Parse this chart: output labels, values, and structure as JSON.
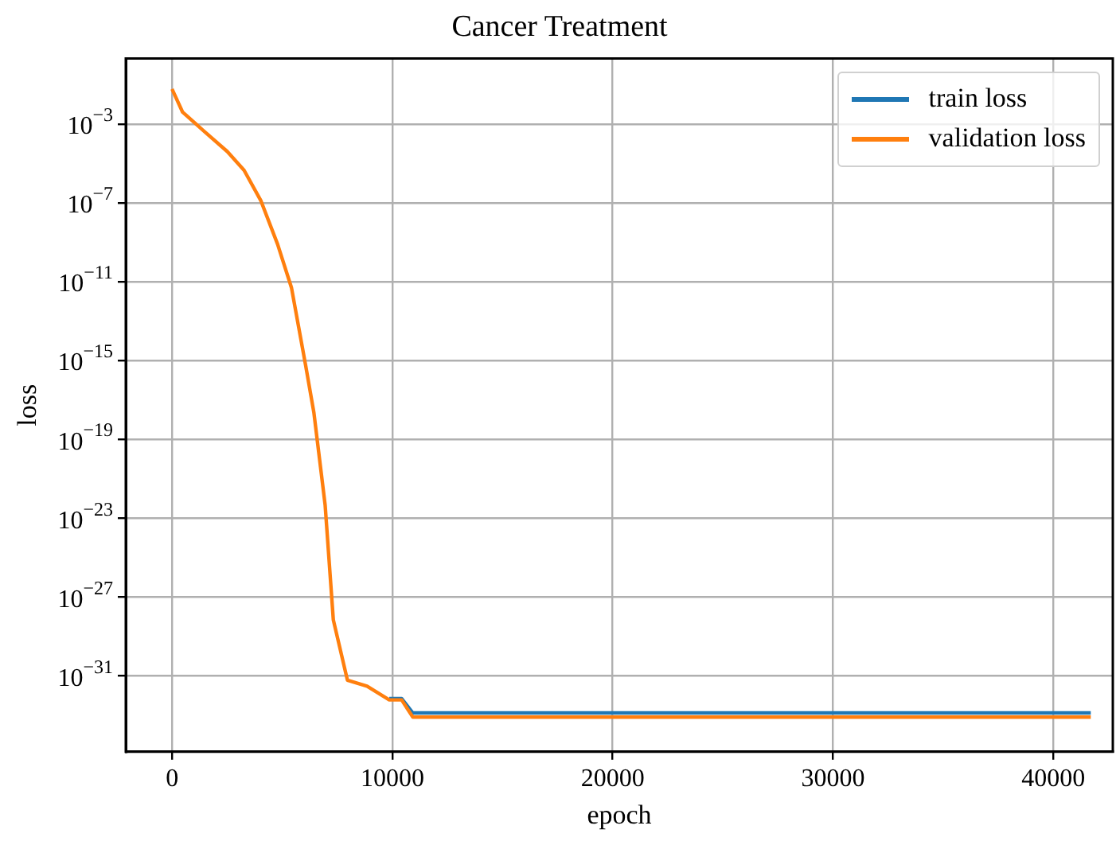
{
  "chart_data": {
    "type": "line",
    "title": "Cancer Treatment",
    "xlabel": "epoch",
    "ylabel": "loss",
    "log": "y",
    "grid": true,
    "legend": "top right",
    "line_style": "solid",
    "marker": "none",
    "xlim": [
      -2100,
      42700
    ],
    "xticks": [
      0,
      10000,
      20000,
      30000,
      40000
    ],
    "ylim": [
      1.4e-35,
      2.1
    ],
    "yticks": [
      {
        "value": 0.001,
        "label": "10$^{−3}$"
      },
      {
        "value": 1e-07,
        "label": "10$^{−7}$"
      },
      {
        "value": 1e-11,
        "label": "10$^{−11}$"
      },
      {
        "value": 1e-15,
        "label": "10$^{−15}$"
      },
      {
        "value": 1e-19,
        "label": "10$^{−19}$"
      },
      {
        "value": 1e-23,
        "label": "10$^{−23}$"
      },
      {
        "value": 1e-27,
        "label": "10$^{−27}$"
      },
      {
        "value": 1e-31,
        "label": "10$^{−31}$"
      }
    ],
    "x": [
      0,
      480,
      1240,
      2510,
      3270,
      4030,
      4790,
      5420,
      6060,
      6440,
      6950,
      7320,
      7960,
      8850,
      9860,
      10420,
      10930,
      41700
    ],
    "series": [
      {
        "name": "train loss",
        "color": "#1f77b4",
        "values": [
          null,
          null,
          null,
          null,
          null,
          null,
          null,
          null,
          null,
          null,
          null,
          null,
          null,
          null,
          7e-33,
          7e-33,
          1.3e-33,
          1.3e-33
        ]
      },
      {
        "name": "validation loss",
        "color": "#ff7f0e",
        "values": [
          0.06,
          0.004,
          0.0007,
          4e-05,
          4.5e-06,
          1.3e-07,
          8e-10,
          5e-12,
          6e-16,
          2.2e-18,
          4.5e-23,
          7e-29,
          6e-32,
          3e-32,
          6e-33,
          6e-33,
          8e-34,
          8e-34
        ]
      }
    ]
  }
}
